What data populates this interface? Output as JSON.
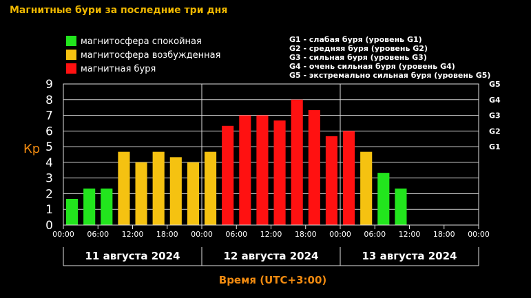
{
  "title": "Магнитные бури за последние три дня",
  "legend_left": [
    {
      "label": "магнитосфера спокойная",
      "color": "#22e51d"
    },
    {
      "label": "магнитосфера возбужденная",
      "color": "#f5c211"
    },
    {
      "label": "магнитная буря",
      "color": "#ff1111"
    }
  ],
  "legend_right": [
    "G1 - слабая буря (уровень G1)",
    "G2 - средняя буря (уровень G2)",
    "G3 - сильная буря (уровень G3)",
    "G4 - очень сильная буря (уровень G4)",
    "G5 - экстремально сильная буря (уровень G5)"
  ],
  "chart_data": {
    "type": "bar",
    "title": "Магнитные бури за последние три дня",
    "ylabel": "Кр",
    "xlabel": "Время (UTC+3:00)",
    "ylim": [
      0,
      9
    ],
    "yticks": [
      "0",
      "1",
      "2",
      "3",
      "4",
      "5",
      "6",
      "7",
      "8",
      "9"
    ],
    "right_ticks": [
      {
        "label": "G1",
        "value": 5
      },
      {
        "label": "G2",
        "value": 6
      },
      {
        "label": "G3",
        "value": 7
      },
      {
        "label": "G4",
        "value": 8
      },
      {
        "label": "G5",
        "value": 9
      }
    ],
    "x_ticks": [
      "00:00",
      "06:00",
      "12:00",
      "18:00",
      "00:00",
      "06:00",
      "12:00",
      "18:00",
      "00:00",
      "06:00",
      "12:00",
      "18:00",
      "00:00"
    ],
    "day_labels": [
      "11 августа 2024",
      "12 августа 2024",
      "13 августа 2024"
    ],
    "values": [
      1.67,
      2.33,
      2.33,
      4.67,
      4.0,
      4.67,
      4.33,
      4.0,
      4.67,
      6.33,
      7.0,
      7.0,
      6.67,
      8.0,
      7.33,
      5.67,
      6.0,
      4.67,
      3.33,
      2.33
    ],
    "levels": [
      "quiet",
      "quiet",
      "quiet",
      "active",
      "active",
      "active",
      "active",
      "active",
      "active",
      "storm",
      "storm",
      "storm",
      "storm",
      "storm",
      "storm",
      "storm",
      "storm",
      "active",
      "quiet",
      "quiet"
    ],
    "level_colors": {
      "quiet": "#22e51d",
      "active": "#f5c211",
      "storm": "#ff1111"
    },
    "grid": true
  }
}
